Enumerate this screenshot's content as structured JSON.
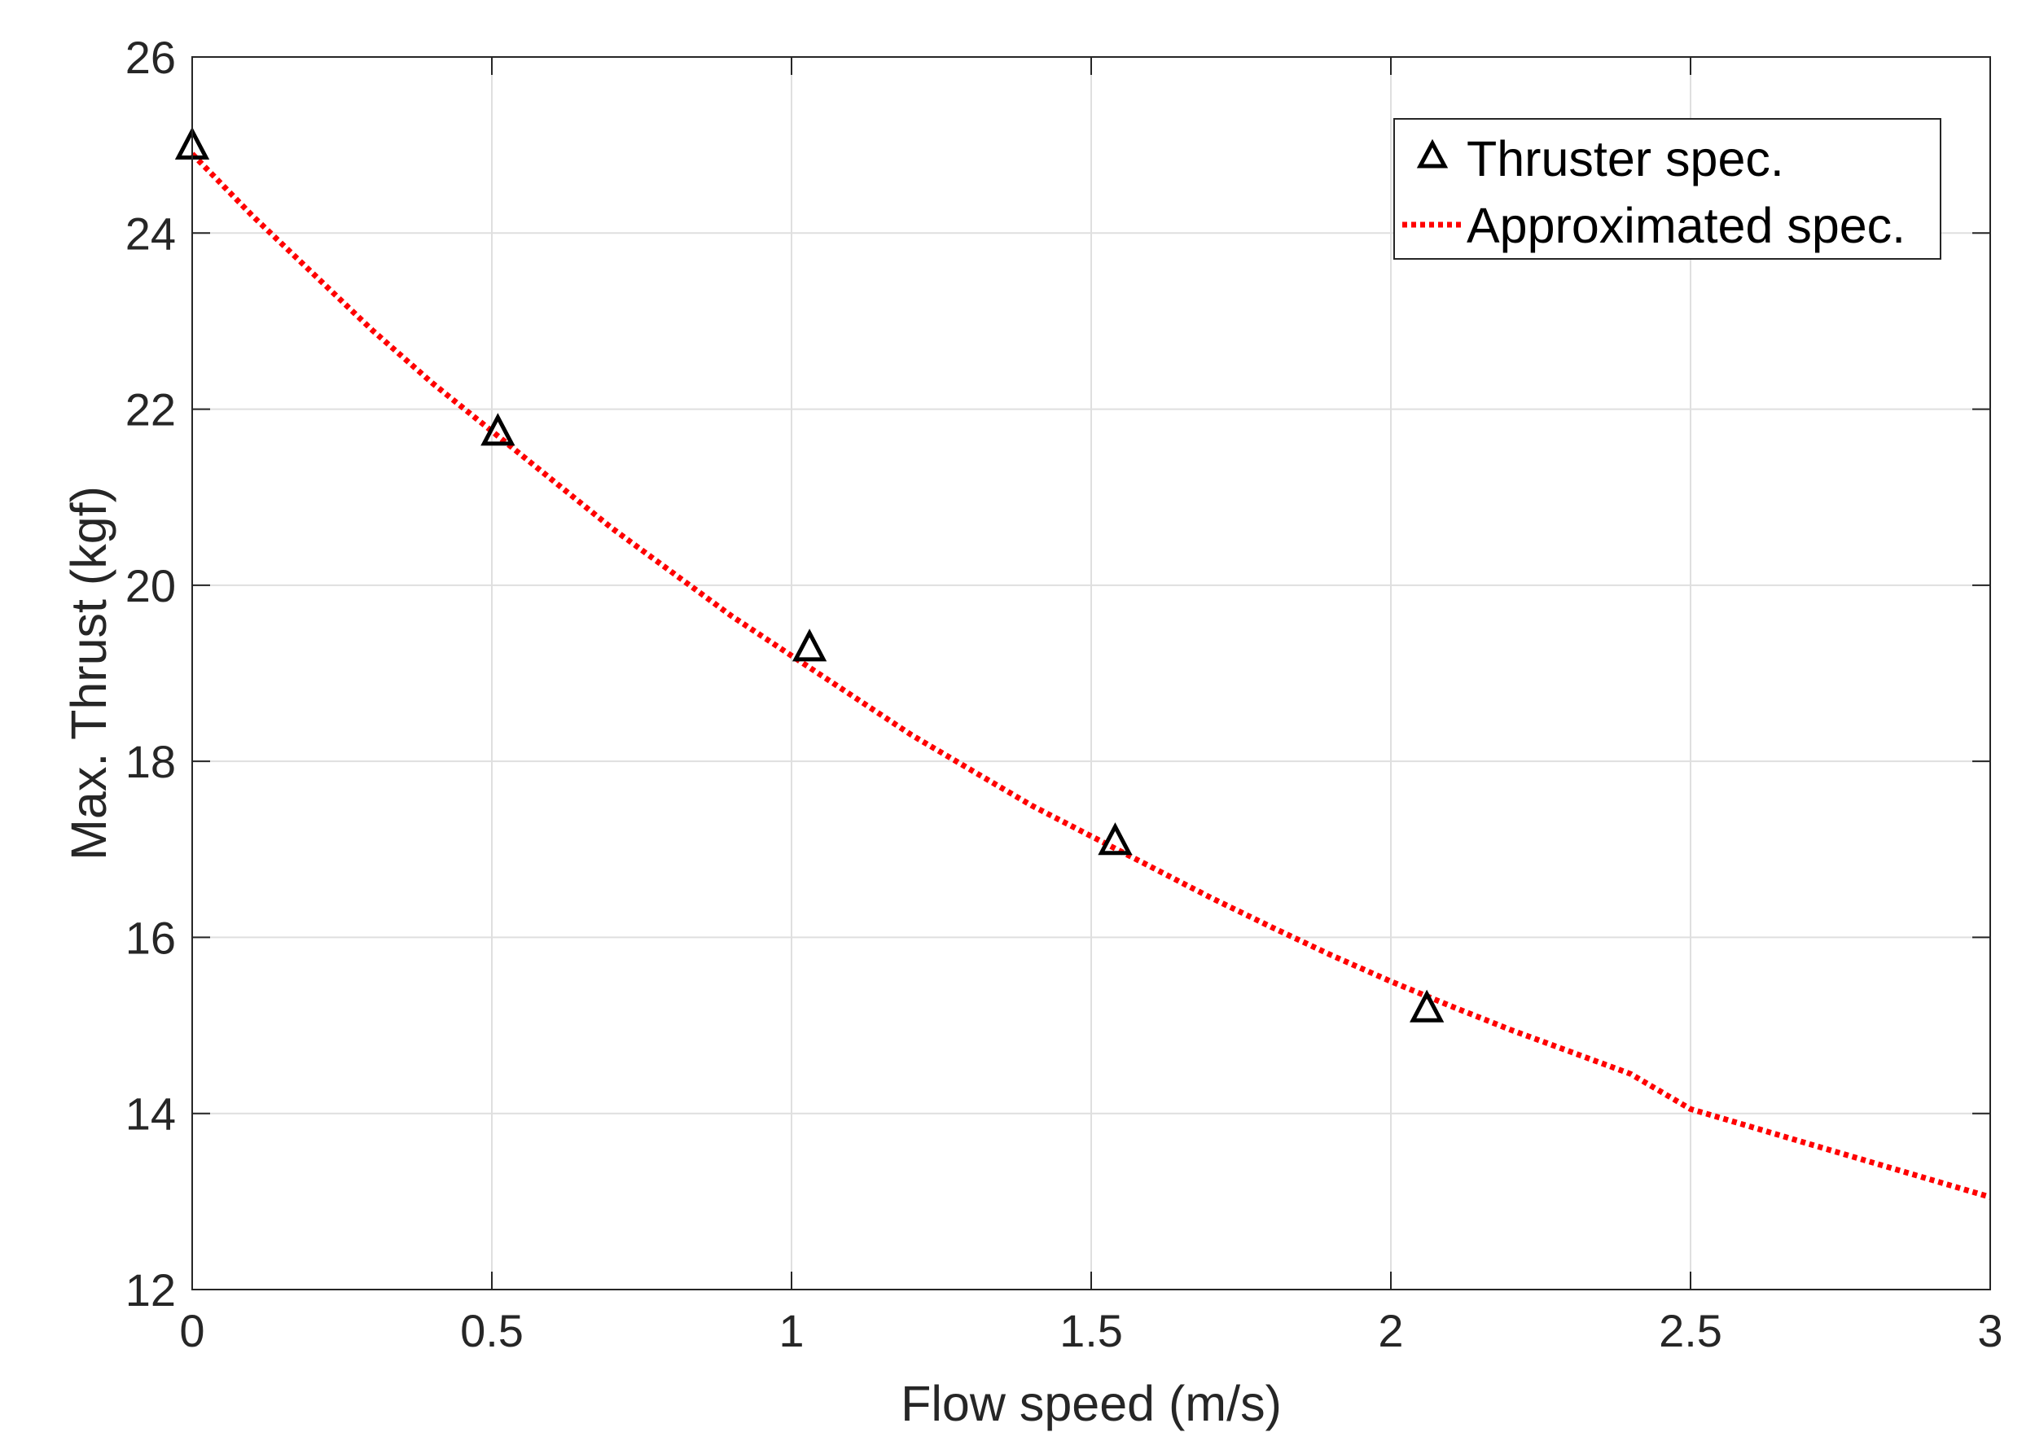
{
  "chart_data": {
    "type": "line",
    "title": "",
    "xlabel": "Flow speed (m/s)",
    "ylabel": "Max. Thrust (kgf)",
    "xlim": [
      0,
      3
    ],
    "ylim": [
      12,
      26
    ],
    "grid": true,
    "legend_position": "top-right",
    "x_ticks": [
      0,
      0.5,
      1,
      1.5,
      2,
      2.5,
      3
    ],
    "x_tick_labels": [
      "0",
      "0.5",
      "1",
      "1.5",
      "2",
      "2.5",
      "3"
    ],
    "y_ticks": [
      12,
      14,
      16,
      18,
      20,
      22,
      24,
      26
    ],
    "y_tick_labels": [
      "12",
      "14",
      "16",
      "18",
      "20",
      "22",
      "24",
      "26"
    ],
    "series": [
      {
        "name": "Thruster spec.",
        "style": "markers",
        "marker": "triangle",
        "color": "#000000",
        "x": [
          0,
          0.51,
          1.03,
          1.54,
          2.06
        ],
        "y": [
          25.0,
          21.75,
          19.3,
          17.1,
          15.2
        ]
      },
      {
        "name": "Approximated spec.",
        "style": "dotted-line",
        "color": "#ff0000",
        "x": [
          0,
          0.1,
          0.2,
          0.3,
          0.4,
          0.5,
          0.6,
          0.7,
          0.8,
          0.9,
          1.0,
          1.1,
          1.2,
          1.3,
          1.4,
          1.5,
          1.6,
          1.7,
          1.8,
          1.9,
          2.0,
          2.1,
          2.2,
          2.3,
          2.4,
          2.5,
          2.6,
          2.7,
          2.8,
          2.9,
          3.0
        ],
        "y": [
          24.9,
          24.2,
          23.55,
          22.9,
          22.3,
          21.75,
          21.2,
          20.65,
          20.15,
          19.65,
          19.2,
          18.75,
          18.3,
          17.9,
          17.5,
          17.15,
          16.8,
          16.45,
          16.12,
          15.8,
          15.5,
          15.22,
          14.95,
          14.7,
          14.45,
          14.05,
          13.85,
          13.65,
          13.45,
          13.25,
          13.05
        ]
      }
    ]
  }
}
